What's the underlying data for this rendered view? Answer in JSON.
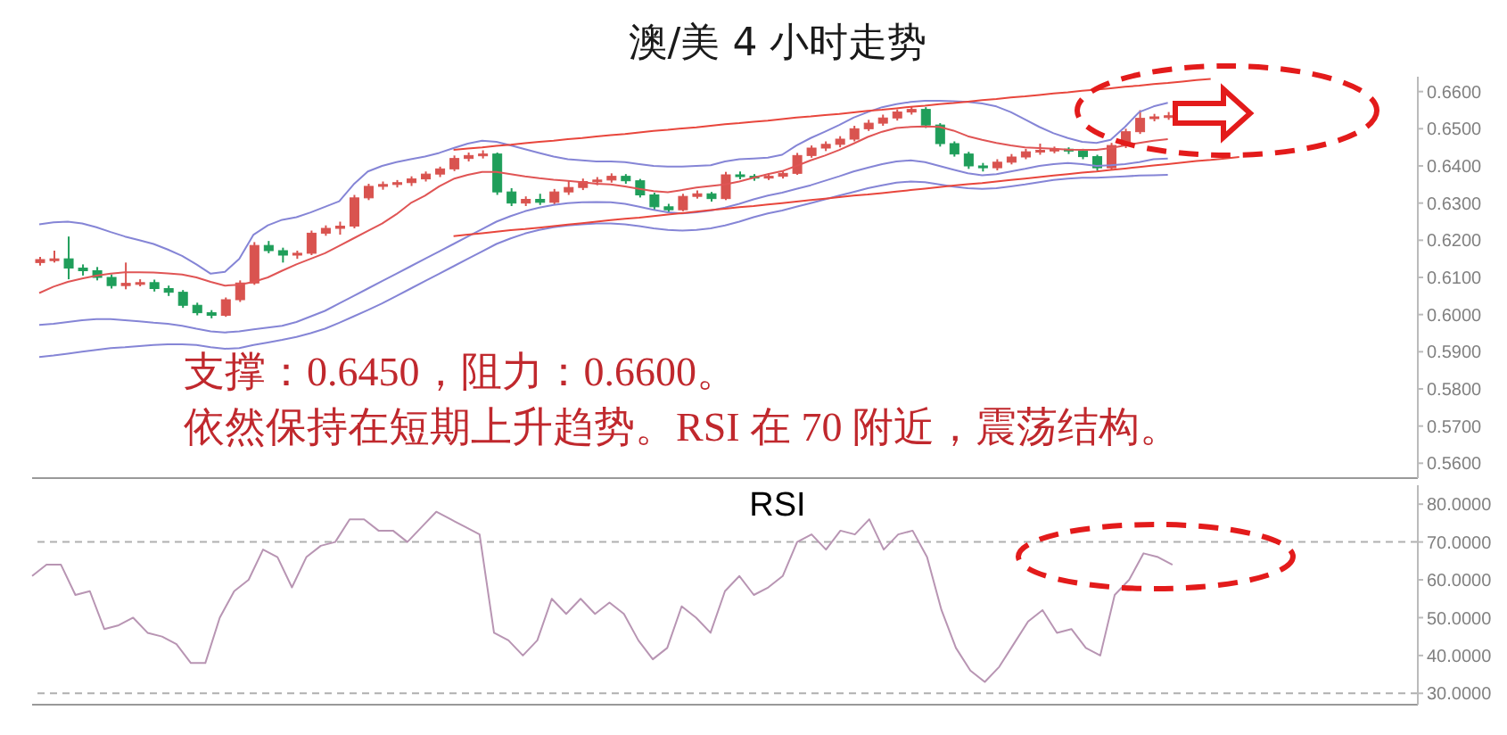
{
  "chart_data": [
    {
      "type": "candlestick",
      "title": "澳/美 4 小时走势",
      "categories": [
        null,
        null,
        null,
        null,
        null,
        null,
        null,
        null,
        null,
        null,
        null,
        null,
        null,
        null,
        null,
        null,
        null,
        null,
        null,
        null,
        null,
        null,
        null,
        null,
        null,
        null,
        null,
        null,
        null,
        null,
        null,
        null,
        null,
        null,
        null,
        null,
        null,
        null,
        null,
        null,
        null,
        null,
        null,
        null,
        null,
        null,
        null,
        null,
        null,
        null,
        null,
        null,
        null,
        null,
        null,
        null,
        null,
        null,
        null,
        null,
        null,
        null,
        null,
        null,
        null,
        null,
        null,
        null,
        null,
        null,
        null,
        null,
        null,
        null,
        null,
        null,
        null,
        null,
        null,
        null,
        null,
        null,
        null,
        null,
        null,
        null,
        null,
        null,
        null,
        null,
        null,
        null,
        null,
        null,
        null,
        null,
        null
      ],
      "ohlc": [
        [
          0.614,
          0.6155,
          0.6132,
          0.6148
        ],
        [
          0.6148,
          0.6172,
          0.614,
          0.615
        ],
        [
          0.615,
          0.621,
          0.6095,
          0.6125
        ],
        [
          0.6125,
          0.6135,
          0.6105,
          0.6118
        ],
        [
          0.6118,
          0.6128,
          0.6092,
          0.61
        ],
        [
          0.61,
          0.6108,
          0.607,
          0.6078
        ],
        [
          0.6078,
          0.614,
          0.6068,
          0.6084
        ],
        [
          0.6084,
          0.6095,
          0.6076,
          0.6086
        ],
        [
          0.6086,
          0.6094,
          0.6062,
          0.607
        ],
        [
          0.607,
          0.6078,
          0.605,
          0.606
        ],
        [
          0.606,
          0.6066,
          0.6018,
          0.6025
        ],
        [
          0.6025,
          0.6032,
          0.5998,
          0.6005
        ],
        [
          0.6005,
          0.6012,
          0.599,
          0.5998
        ],
        [
          0.5998,
          0.6046,
          0.5994,
          0.604
        ],
        [
          0.604,
          0.6092,
          0.6034,
          0.6085
        ],
        [
          0.6085,
          0.6195,
          0.608,
          0.6186
        ],
        [
          0.6186,
          0.6198,
          0.6165,
          0.6172
        ],
        [
          0.6172,
          0.618,
          0.614,
          0.616
        ],
        [
          0.616,
          0.6172,
          0.615,
          0.6165
        ],
        [
          0.6165,
          0.6226,
          0.616,
          0.6219
        ],
        [
          0.6219,
          0.624,
          0.6212,
          0.6232
        ],
        [
          0.6232,
          0.625,
          0.6215,
          0.6238
        ],
        [
          0.6238,
          0.6322,
          0.6232,
          0.6314
        ],
        [
          0.6314,
          0.6352,
          0.6308,
          0.6345
        ],
        [
          0.6345,
          0.6358,
          0.6336,
          0.635
        ],
        [
          0.635,
          0.6362,
          0.6342,
          0.6355
        ],
        [
          0.6355,
          0.6372,
          0.6346,
          0.6365
        ],
        [
          0.6365,
          0.6385,
          0.6358,
          0.6378
        ],
        [
          0.6378,
          0.6398,
          0.637,
          0.6392
        ],
        [
          0.6392,
          0.6428,
          0.6386,
          0.642
        ],
        [
          0.642,
          0.6436,
          0.6412,
          0.6428
        ],
        [
          0.6428,
          0.6442,
          0.642,
          0.6432
        ],
        [
          0.6432,
          0.6436,
          0.6322,
          0.633
        ],
        [
          0.633,
          0.634,
          0.6292,
          0.63
        ],
        [
          0.63,
          0.6318,
          0.6292,
          0.631
        ],
        [
          0.631,
          0.6325,
          0.6295,
          0.6302
        ],
        [
          0.6302,
          0.6338,
          0.6296,
          0.633
        ],
        [
          0.633,
          0.636,
          0.6322,
          0.6342
        ],
        [
          0.6342,
          0.6366,
          0.6335,
          0.6358
        ],
        [
          0.6358,
          0.637,
          0.6348,
          0.6362
        ],
        [
          0.6362,
          0.638,
          0.6355,
          0.6372
        ],
        [
          0.6372,
          0.6378,
          0.6352,
          0.636
        ],
        [
          0.636,
          0.6365,
          0.6315,
          0.6322
        ],
        [
          0.6322,
          0.6328,
          0.6282,
          0.629
        ],
        [
          0.629,
          0.6298,
          0.6274,
          0.6282
        ],
        [
          0.6282,
          0.6325,
          0.6278,
          0.6318
        ],
        [
          0.6318,
          0.6334,
          0.6312,
          0.6325
        ],
        [
          0.6325,
          0.633,
          0.6304,
          0.6312
        ],
        [
          0.6312,
          0.6384,
          0.6308,
          0.6376
        ],
        [
          0.6376,
          0.6385,
          0.6364,
          0.6372
        ],
        [
          0.6372,
          0.6378,
          0.636,
          0.6368
        ],
        [
          0.6368,
          0.638,
          0.6362,
          0.6372
        ],
        [
          0.6372,
          0.6388,
          0.6366,
          0.638
        ],
        [
          0.638,
          0.6435,
          0.6376,
          0.6428
        ],
        [
          0.6428,
          0.6455,
          0.6422,
          0.6448
        ],
        [
          0.6448,
          0.6466,
          0.644,
          0.6458
        ],
        [
          0.6458,
          0.648,
          0.645,
          0.6472
        ],
        [
          0.6472,
          0.6508,
          0.6466,
          0.65
        ],
        [
          0.65,
          0.6524,
          0.6494,
          0.6515
        ],
        [
          0.6515,
          0.6538,
          0.6508,
          0.6529
        ],
        [
          0.6529,
          0.6552,
          0.6522,
          0.6545
        ],
        [
          0.6545,
          0.656,
          0.6538,
          0.6552
        ],
        [
          0.6552,
          0.6558,
          0.6502,
          0.651
        ],
        [
          0.651,
          0.6515,
          0.6452,
          0.646
        ],
        [
          0.646,
          0.6466,
          0.6425,
          0.6432
        ],
        [
          0.6432,
          0.6438,
          0.6392,
          0.64
        ],
        [
          0.64,
          0.6408,
          0.6385,
          0.6395
        ],
        [
          0.6395,
          0.6418,
          0.6388,
          0.641
        ],
        [
          0.641,
          0.6432,
          0.6404,
          0.6424
        ],
        [
          0.6424,
          0.6446,
          0.6418,
          0.6438
        ],
        [
          0.6438,
          0.646,
          0.643,
          0.6442
        ],
        [
          0.6442,
          0.6452,
          0.6434,
          0.6445
        ],
        [
          0.6445,
          0.645,
          0.6432,
          0.644
        ],
        [
          0.644,
          0.6446,
          0.6418,
          0.6425
        ],
        [
          0.6425,
          0.643,
          0.6388,
          0.6395
        ],
        [
          0.6395,
          0.6462,
          0.639,
          0.6455
        ],
        [
          0.6455,
          0.65,
          0.6448,
          0.6492
        ],
        [
          0.6492,
          0.655,
          0.6486,
          0.6528
        ],
        [
          0.6528,
          0.654,
          0.652,
          0.6532
        ],
        [
          0.6532,
          0.6545,
          0.6524,
          0.6535
        ],
        null,
        null,
        null,
        null,
        null,
        null,
        null,
        null,
        null,
        null,
        null,
        null,
        null,
        null,
        null,
        null,
        null
      ],
      "colors": [
        "#d9534f",
        "#d9534f",
        "#1f9e5a",
        "#1f9e5a",
        "#1f9e5a",
        "#1f9e5a",
        "#d9534f",
        "#d9534f",
        "#1f9e5a",
        "#1f9e5a",
        "#1f9e5a",
        "#1f9e5a",
        "#1f9e5a",
        "#d9534f",
        "#d9534f",
        "#d9534f",
        "#1f9e5a",
        "#1f9e5a",
        "#d9534f",
        "#d9534f",
        "#d9534f",
        "#d9534f",
        "#d9534f",
        "#d9534f",
        "#d9534f",
        "#d9534f",
        "#d9534f",
        "#d9534f",
        "#d9534f",
        "#d9534f",
        "#d9534f",
        "#d9534f",
        "#1f9e5a",
        "#1f9e5a",
        "#d9534f",
        "#1f9e5a",
        "#d9534f",
        "#d9534f",
        "#d9534f",
        "#d9534f",
        "#d9534f",
        "#1f9e5a",
        "#1f9e5a",
        "#1f9e5a",
        "#1f9e5a",
        "#d9534f",
        "#d9534f",
        "#1f9e5a",
        "#d9534f",
        "#1f9e5a",
        "#1f9e5a",
        "#d9534f",
        "#d9534f",
        "#d9534f",
        "#d9534f",
        "#d9534f",
        "#d9534f",
        "#d9534f",
        "#d9534f",
        "#d9534f",
        "#d9534f",
        "#d9534f",
        "#1f9e5a",
        "#1f9e5a",
        "#1f9e5a",
        "#1f9e5a",
        "#1f9e5a",
        "#d9534f",
        "#d9534f",
        "#d9534f",
        "#d9534f",
        "#d9534f",
        "#1f9e5a",
        "#1f9e5a",
        "#1f9e5a",
        "#d9534f",
        "#d9534f",
        "#d9534f",
        "#d9534f",
        "#d9534f",
        null,
        null,
        null,
        null,
        null,
        null,
        null,
        null,
        null,
        null,
        null,
        null,
        null,
        null,
        null,
        null,
        null
      ],
      "series": [
        {
          "type": "line",
          "color": "#8585d6",
          "values": [
            0.6243,
            0.6248,
            0.625,
            0.6245,
            0.6235,
            0.6222,
            0.621,
            0.62,
            0.619,
            0.6175,
            0.6158,
            0.6135,
            0.611,
            0.6115,
            0.615,
            0.6215,
            0.624,
            0.6255,
            0.6262,
            0.6275,
            0.629,
            0.6305,
            0.635,
            0.6385,
            0.64,
            0.641,
            0.6418,
            0.6425,
            0.6435,
            0.6448,
            0.646,
            0.6468,
            0.6465,
            0.6455,
            0.6445,
            0.6435,
            0.6425,
            0.6418,
            0.6415,
            0.6412,
            0.6412,
            0.641,
            0.6405,
            0.64,
            0.6398,
            0.6398,
            0.64,
            0.6402,
            0.6412,
            0.6418,
            0.642,
            0.6422,
            0.643,
            0.6455,
            0.6475,
            0.6492,
            0.651,
            0.653,
            0.6545,
            0.6558,
            0.6566,
            0.6572,
            0.6575,
            0.6575,
            0.6574,
            0.6572,
            0.6568,
            0.656,
            0.6545,
            0.6525,
            0.6505,
            0.6488,
            0.6475,
            0.6465,
            0.6462,
            0.647,
            0.6505,
            0.6545,
            0.656,
            0.657,
            null,
            null,
            null,
            null,
            null,
            null,
            null,
            null,
            null,
            null,
            null,
            null,
            null,
            null,
            null,
            null,
            null
          ]
        },
        {
          "type": "line",
          "color": "#e05555",
          "values": [
            0.6058,
            0.6075,
            0.6088,
            0.6097,
            0.6105,
            0.611,
            0.6114,
            0.6114,
            0.6113,
            0.6111,
            0.6108,
            0.61,
            0.6088,
            0.6078,
            0.608,
            0.6088,
            0.61,
            0.6118,
            0.6135,
            0.615,
            0.6165,
            0.6185,
            0.6205,
            0.6225,
            0.6245,
            0.627,
            0.63,
            0.632,
            0.6345,
            0.6365,
            0.6376,
            0.6384,
            0.6384,
            0.6378,
            0.6372,
            0.6367,
            0.6363,
            0.636,
            0.6356,
            0.6352,
            0.635,
            0.6345,
            0.6338,
            0.6332,
            0.6329,
            0.6335,
            0.6342,
            0.6346,
            0.635,
            0.6358,
            0.6368,
            0.6378,
            0.6386,
            0.64,
            0.6415,
            0.6428,
            0.6443,
            0.646,
            0.6478,
            0.6492,
            0.6502,
            0.6505,
            0.6506,
            0.6505,
            0.6495,
            0.648,
            0.647,
            0.6462,
            0.6455,
            0.645,
            0.6448,
            0.6446,
            0.6444,
            0.6443,
            0.6443,
            0.6448,
            0.6455,
            0.6462,
            0.6468,
            0.6472,
            null,
            null,
            null,
            null,
            null,
            null,
            null,
            null,
            null,
            null,
            null,
            null,
            null,
            null,
            null,
            null,
            null
          ]
        },
        {
          "type": "line",
          "color": "#8585d6",
          "values": [
            0.5972,
            0.5975,
            0.598,
            0.5985,
            0.5988,
            0.5988,
            0.5985,
            0.5982,
            0.5978,
            0.5975,
            0.597,
            0.5962,
            0.5955,
            0.5952,
            0.5955,
            0.596,
            0.5965,
            0.597,
            0.598,
            0.5995,
            0.601,
            0.603,
            0.605,
            0.607,
            0.609,
            0.611,
            0.613,
            0.615,
            0.617,
            0.619,
            0.621,
            0.623,
            0.625,
            0.6265,
            0.6278,
            0.6288,
            0.6295,
            0.63,
            0.6302,
            0.6303,
            0.6302,
            0.6298,
            0.629,
            0.6282,
            0.6275,
            0.6272,
            0.6275,
            0.628,
            0.6288,
            0.6298,
            0.631,
            0.632,
            0.6328,
            0.6338,
            0.6348,
            0.636,
            0.6372,
            0.6385,
            0.6395,
            0.6405,
            0.6412,
            0.6415,
            0.641,
            0.64,
            0.639,
            0.638,
            0.6375,
            0.6378,
            0.6385,
            0.6392,
            0.64,
            0.6405,
            0.6408,
            0.6405,
            0.64,
            0.6402,
            0.6405,
            0.641,
            0.6418,
            0.642,
            null,
            null,
            null,
            null,
            null,
            null,
            null,
            null,
            null,
            null,
            null,
            null,
            null,
            null,
            null,
            null,
            null
          ]
        },
        {
          "type": "line",
          "color": "#8585d6",
          "values": [
            0.5886,
            0.589,
            0.5895,
            0.59,
            0.5905,
            0.591,
            0.5912,
            0.5915,
            0.5918,
            0.592,
            0.592,
            0.5918,
            0.5912,
            0.5908,
            0.591,
            0.5918,
            0.5925,
            0.5932,
            0.594,
            0.595,
            0.5962,
            0.5978,
            0.5995,
            0.6012,
            0.603,
            0.605,
            0.607,
            0.609,
            0.611,
            0.613,
            0.615,
            0.617,
            0.619,
            0.6205,
            0.6218,
            0.6228,
            0.6235,
            0.624,
            0.6243,
            0.6245,
            0.6245,
            0.6243,
            0.6238,
            0.6232,
            0.6228,
            0.6226,
            0.6228,
            0.6232,
            0.624,
            0.625,
            0.6262,
            0.6272,
            0.628,
            0.629,
            0.63,
            0.631,
            0.632,
            0.633,
            0.634,
            0.6348,
            0.6355,
            0.6358,
            0.6356,
            0.635,
            0.6344,
            0.634,
            0.6338,
            0.634,
            0.6345,
            0.635,
            0.6356,
            0.6362,
            0.6366,
            0.6368,
            0.6368,
            0.637,
            0.6372,
            0.6374,
            0.6375,
            0.6376,
            null,
            null,
            null,
            null,
            null,
            null,
            null,
            null,
            null,
            null,
            null,
            null,
            null,
            null,
            null,
            null,
            null
          ]
        },
        {
          "type": "line",
          "color": "#e8463c",
          "values": [
            null,
            null,
            null,
            null,
            null,
            null,
            null,
            null,
            null,
            null,
            null,
            null,
            null,
            null,
            null,
            null,
            null,
            null,
            null,
            null,
            null,
            null,
            null,
            null,
            null,
            null,
            null,
            null,
            null,
            0.6443,
            0.6447,
            0.645,
            0.6454,
            0.6457,
            0.6461,
            0.6465,
            0.6468,
            0.6472,
            0.6475,
            0.6479,
            0.6483,
            0.6486,
            0.649,
            0.6494,
            0.6497,
            0.6501,
            0.6504,
            0.6508,
            0.6512,
            0.6515,
            0.6519,
            0.6522,
            0.6526,
            0.653,
            0.6533,
            0.6537,
            0.654,
            0.6544,
            0.6548,
            0.6551,
            0.6555,
            0.6559,
            0.6562,
            0.6566,
            0.6569,
            0.6573,
            0.6577,
            0.658,
            0.6584,
            0.6587,
            0.6591,
            0.6595,
            0.6598,
            0.6602,
            0.6605,
            0.6609,
            0.6613,
            0.6616,
            0.662,
            0.6623,
            0.6627,
            0.6631,
            0.6634,
            null,
            null,
            null,
            null,
            null,
            null,
            null,
            null,
            null,
            null,
            null,
            null,
            null,
            null
          ]
        },
        {
          "type": "line",
          "color": "#e8463c",
          "values": [
            null,
            null,
            null,
            null,
            null,
            null,
            null,
            null,
            null,
            null,
            null,
            null,
            null,
            null,
            null,
            null,
            null,
            null,
            null,
            null,
            null,
            null,
            null,
            null,
            null,
            null,
            null,
            null,
            null,
            0.6211,
            0.6215,
            0.6219,
            0.6223,
            0.6227,
            0.623,
            0.6234,
            0.6238,
            0.6242,
            0.6246,
            0.625,
            0.6254,
            0.6258,
            0.6261,
            0.6265,
            0.6269,
            0.6273,
            0.6277,
            0.6281,
            0.6285,
            0.6289,
            0.6292,
            0.6296,
            0.63,
            0.6304,
            0.6308,
            0.6312,
            0.6316,
            0.632,
            0.6323,
            0.6327,
            0.6331,
            0.6335,
            0.6339,
            0.6343,
            0.6347,
            0.6351,
            0.6354,
            0.6358,
            0.6362,
            0.6366,
            0.637,
            0.6374,
            0.6378,
            0.6382,
            0.6385,
            0.6389,
            0.6393,
            0.6397,
            0.6401,
            0.6405,
            0.6409,
            0.6413,
            0.6416,
            0.642,
            0.6424,
            null,
            null,
            null,
            null,
            null,
            null,
            null,
            null,
            null,
            null,
            null,
            null
          ]
        }
      ],
      "ylim": [
        0.556,
        0.664
      ],
      "yticks": [
        {
          "value": 0.56,
          "label": "0.5600"
        },
        {
          "value": 0.57,
          "label": "0.5700"
        },
        {
          "value": 0.58,
          "label": "0.5800"
        },
        {
          "value": 0.59,
          "label": "0.5900"
        },
        {
          "value": 0.6,
          "label": "0.6000"
        },
        {
          "value": 0.61,
          "label": "0.6100"
        },
        {
          "value": 0.62,
          "label": "0.6200"
        },
        {
          "value": 0.63,
          "label": "0.6300"
        },
        {
          "value": 0.64,
          "label": "0.6400"
        },
        {
          "value": 0.65,
          "label": "0.6500"
        },
        {
          "value": 0.66,
          "label": "0.6600"
        }
      ],
      "tick_labels": "y",
      "annotations": [
        "支撑：0.6450，阻力：0.6600。",
        "依然保持在短期上升趋势。RSI 在 70 附近，震荡结构。"
      ]
    },
    {
      "type": "line",
      "title": "RSI",
      "categories": [
        null,
        null,
        null,
        null,
        null,
        null,
        null,
        null,
        null,
        null,
        null,
        null,
        null,
        null,
        null,
        null,
        null,
        null,
        null,
        null,
        null,
        null,
        null,
        null,
        null,
        null,
        null,
        null,
        null,
        null,
        null,
        null,
        null,
        null,
        null,
        null,
        null,
        null,
        null,
        null,
        null,
        null,
        null,
        null,
        null,
        null,
        null,
        null,
        null,
        null,
        null,
        null,
        null,
        null,
        null,
        null,
        null,
        null,
        null,
        null,
        null,
        null,
        null,
        null,
        null,
        null,
        null,
        null,
        null,
        null,
        null,
        null,
        null,
        null,
        null,
        null,
        null,
        null,
        null,
        null,
        null,
        null,
        null,
        null,
        null,
        null,
        null,
        null,
        null,
        null,
        null,
        null,
        null,
        null,
        null,
        null,
        null
      ],
      "series": [
        {
          "color": "#b895b3",
          "values": [
            61,
            64,
            64,
            56,
            57,
            47,
            48,
            50,
            46,
            45,
            43,
            38,
            38,
            50,
            57,
            60,
            68,
            66,
            58,
            66,
            69,
            70,
            76,
            76,
            73,
            73,
            70,
            74,
            78,
            76,
            74,
            72,
            46,
            44,
            40,
            44,
            55,
            51,
            55,
            51,
            54,
            51,
            44,
            39,
            42,
            53,
            50,
            46,
            57,
            61,
            56,
            58,
            61,
            70,
            72,
            68,
            73,
            72,
            76,
            68,
            72,
            73,
            66,
            52,
            42,
            36,
            33,
            37,
            43,
            49,
            52,
            46,
            47,
            42,
            40,
            56,
            60,
            67,
            66,
            64,
            null,
            null,
            null,
            null,
            null,
            null,
            null,
            null,
            null,
            null,
            null,
            null,
            null,
            null,
            null,
            null,
            null
          ]
        }
      ],
      "ylim": [
        27,
        85
      ],
      "yticks": [
        {
          "value": 30,
          "label": "30.0000"
        },
        {
          "value": 40,
          "label": "40.0000"
        },
        {
          "value": 50,
          "label": "50.0000"
        },
        {
          "value": 60,
          "label": "60.0000"
        },
        {
          "value": 70,
          "label": "70.0000"
        },
        {
          "value": 80,
          "label": "80.0000"
        }
      ],
      "ref_lines": [
        {
          "axis": "y",
          "value": 70,
          "color": "#b0b0b0",
          "line_style": "dashed"
        },
        {
          "axis": "y",
          "value": 30,
          "color": "#b0b0b0",
          "line_style": "dashed"
        }
      ],
      "tick_labels": "y"
    }
  ]
}
